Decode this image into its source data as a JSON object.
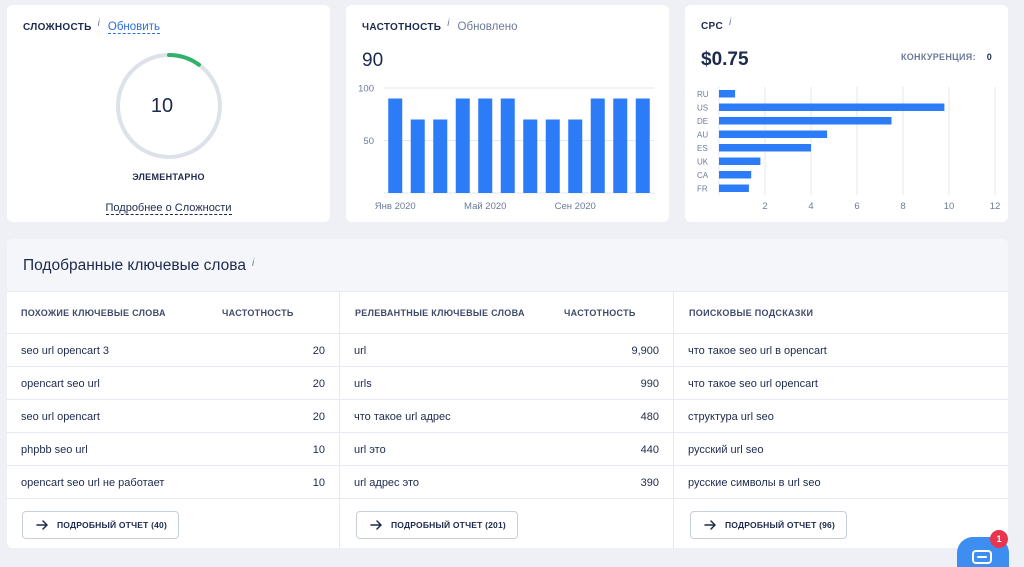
{
  "difficulty": {
    "title": "СЛОЖНОСТЬ",
    "info": "i",
    "update_link": "Обновить",
    "value": "10",
    "value_fraction": 0.1,
    "level_label": "ЭЛЕМЕНТАРНО",
    "details_link": "Подробнее о Сложности",
    "accent_color": "#2fb36b"
  },
  "volume": {
    "title": "ЧАСТОТНОСТЬ",
    "info": "i",
    "status": "Обновлено",
    "value": "90",
    "bar_color": "#2b7cf6"
  },
  "cpc": {
    "title": "CPC",
    "info": "i",
    "value": "$0.75",
    "competition_label": "КОНКУРЕНЦИЯ:",
    "competition_value": "0",
    "bar_color": "#2b7cf6"
  },
  "chart_data": [
    {
      "type": "bar",
      "title": "",
      "x": [
        "Янв 2020",
        "",
        "",
        "",
        "Май 2020",
        "",
        "",
        "",
        "Сен 2020",
        "",
        "",
        ""
      ],
      "x_tick_labels": [
        "Янв 2020",
        "Май 2020",
        "Сен 2020"
      ],
      "values": [
        90,
        70,
        70,
        90,
        90,
        90,
        70,
        70,
        70,
        90,
        90,
        90
      ],
      "ylim": [
        0,
        100
      ],
      "y_ticks": [
        "100",
        "50"
      ],
      "grid": true
    },
    {
      "type": "bar",
      "orientation": "horizontal",
      "title": "",
      "categories": [
        "RU",
        "US",
        "DE",
        "AU",
        "ES",
        "UK",
        "CA",
        "FR"
      ],
      "values": [
        0.7,
        9.8,
        7.5,
        4.7,
        4.0,
        1.8,
        1.4,
        1.3
      ],
      "xlim": [
        0,
        12
      ],
      "x_ticks": [
        "2",
        "4",
        "6",
        "8",
        "10",
        "12"
      ],
      "grid": true
    }
  ],
  "keywords": {
    "title": "Подобранные ключевые слова",
    "info": "i",
    "similar": {
      "header": "ПОХОЖИЕ КЛЮЧЕВЫЕ СЛОВА",
      "volume_header": "ЧАСТОТНОСТЬ",
      "rows": [
        {
          "kw": "seo url opencart 3",
          "vol": "20"
        },
        {
          "kw": "opencart seo url",
          "vol": "20"
        },
        {
          "kw": "seo url opencart",
          "vol": "20"
        },
        {
          "kw": "phpbb seo url",
          "vol": "10"
        },
        {
          "kw": "opencart seo url не работает",
          "vol": "10"
        }
      ],
      "button": "ПОДРОБНЫЙ ОТЧЕТ (40)"
    },
    "related": {
      "header": "РЕЛЕВАНТНЫЕ КЛЮЧЕВЫЕ СЛОВА",
      "volume_header": "ЧАСТОТНОСТЬ",
      "rows": [
        {
          "kw": "url",
          "vol": "9,900"
        },
        {
          "kw": "urls",
          "vol": "990"
        },
        {
          "kw": "что такое url адрес",
          "vol": "480"
        },
        {
          "kw": "url это",
          "vol": "440"
        },
        {
          "kw": "url адрес это",
          "vol": "390"
        }
      ],
      "button": "ПОДРОБНЫЙ ОТЧЕТ (201)"
    },
    "suggestions": {
      "header": "ПОИСКОВЫЕ ПОДСКАЗКИ",
      "rows": [
        {
          "kw": "что такое seo url в opencart"
        },
        {
          "kw": "что такое seo url opencart"
        },
        {
          "kw": "структура url seo"
        },
        {
          "kw": "русский url seo"
        },
        {
          "kw": "русские символы в url seo"
        }
      ],
      "button": "ПОДРОБНЫЙ ОТЧЕТ (96)"
    }
  },
  "chat": {
    "icon": "chat-icon",
    "badge": "1"
  }
}
